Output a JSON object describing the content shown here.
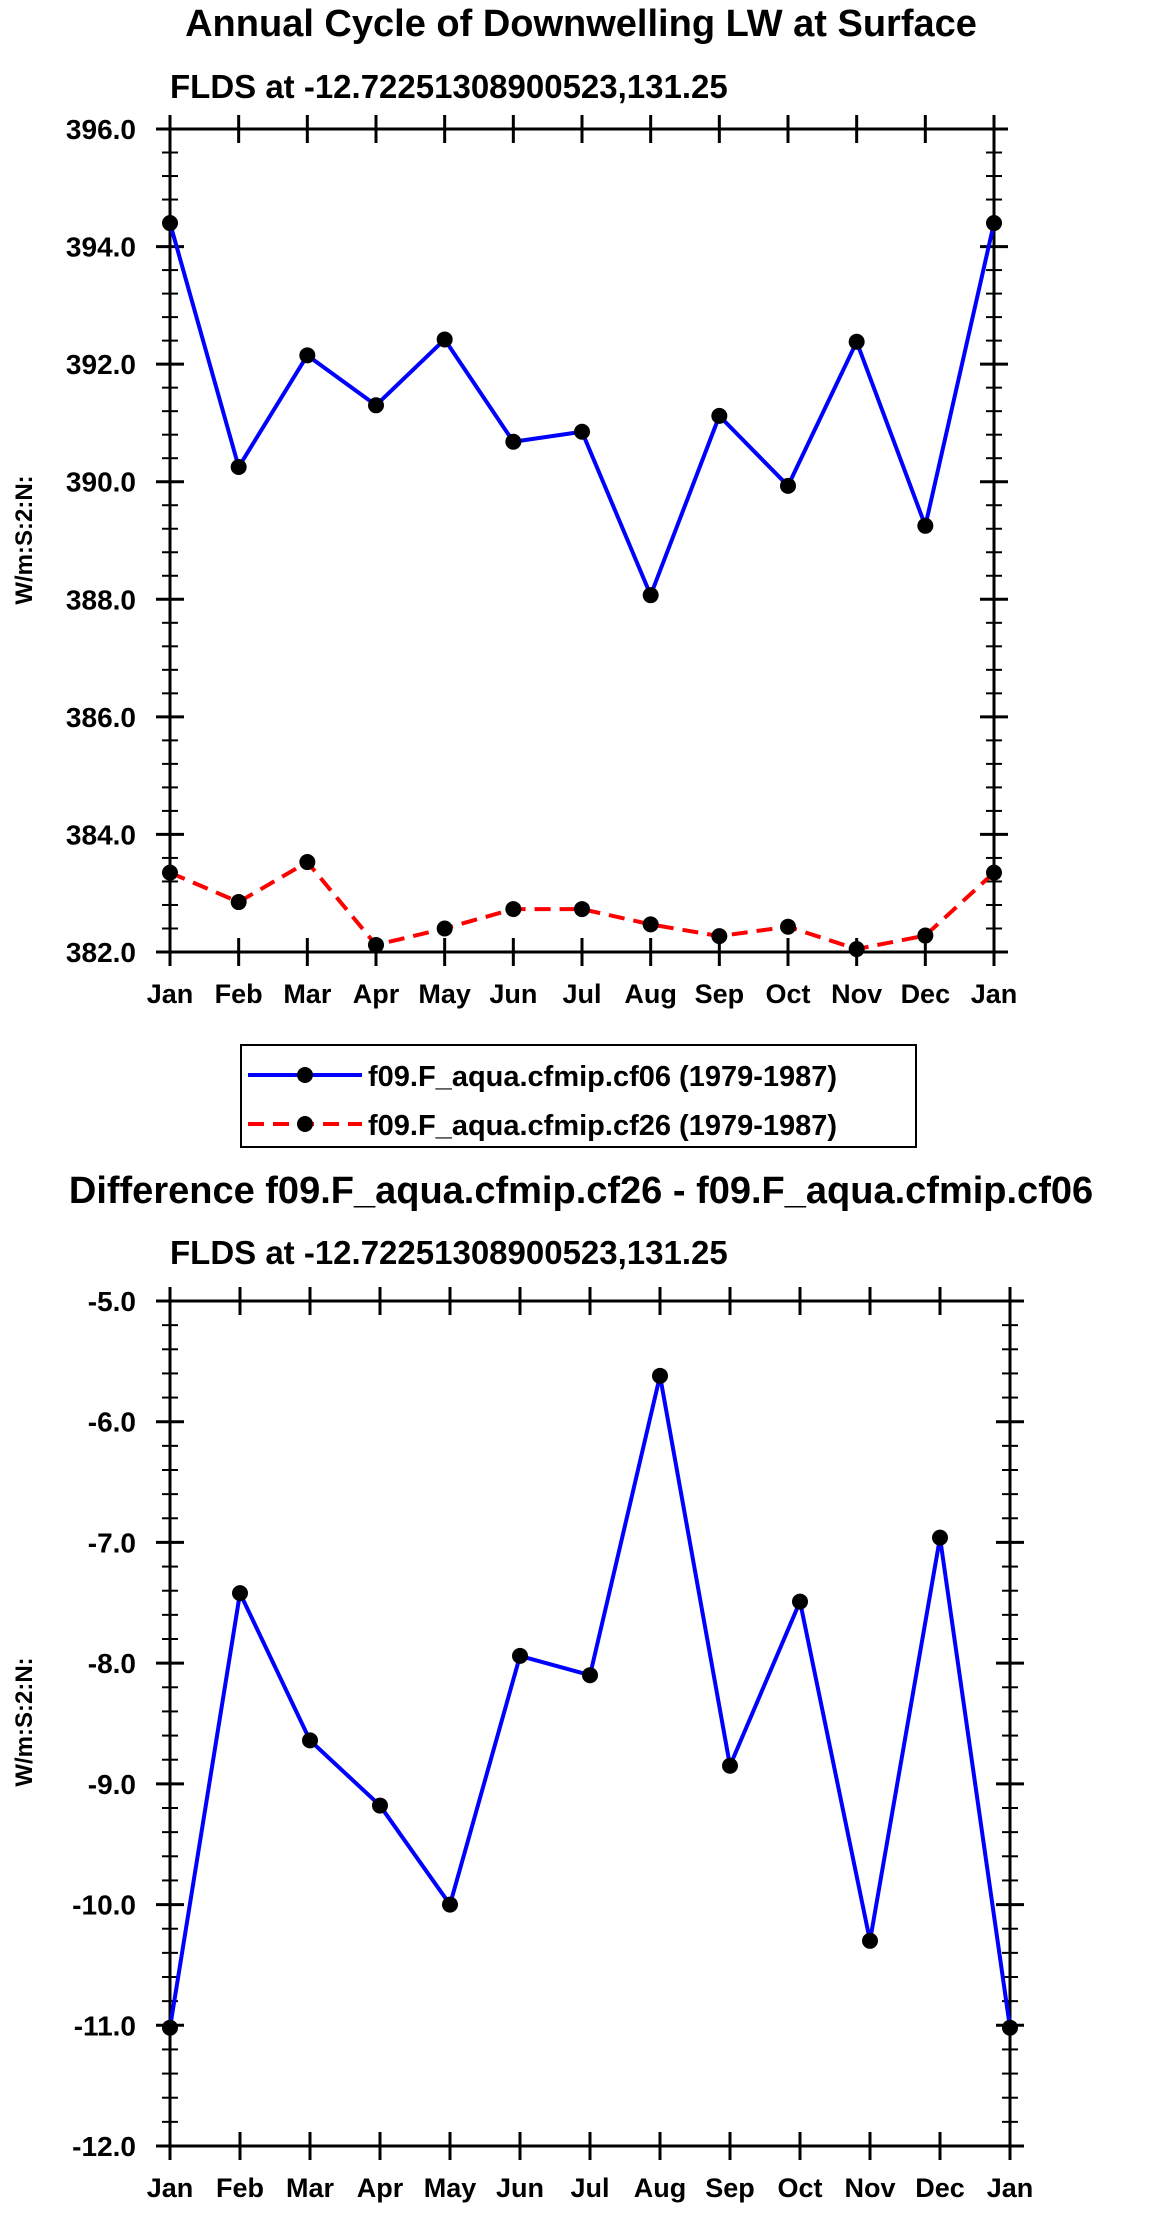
{
  "chart_data": [
    {
      "type": "line",
      "title": "Annual Cycle of Downwelling LW at Surface",
      "subtitle": "FLDS at -12.72251308900523,131.25",
      "xlabel": "",
      "ylabel": "W/m:S:2:N:",
      "categories": [
        "Jan",
        "Feb",
        "Mar",
        "Apr",
        "May",
        "Jun",
        "Jul",
        "Aug",
        "Sep",
        "Oct",
        "Nov",
        "Dec",
        "Jan"
      ],
      "ylim": [
        382.0,
        396.0
      ],
      "yticks": [
        "382.0",
        "384.0",
        "386.0",
        "388.0",
        "390.0",
        "392.0",
        "394.0",
        "396.0"
      ],
      "series": [
        {
          "name": "f09.F_aqua.cfmip.cf06 (1979-1987)",
          "color": "#0000ff",
          "dash": "solid",
          "values": [
            394.4,
            390.25,
            392.15,
            391.3,
            392.42,
            390.68,
            390.85,
            388.07,
            391.12,
            389.93,
            392.38,
            389.25,
            394.4
          ]
        },
        {
          "name": "f09.F_aqua.cfmip.cf26 (1979-1987)",
          "color": "#ff0000",
          "dash": "dashed",
          "values": [
            383.35,
            382.85,
            383.53,
            382.12,
            382.4,
            382.73,
            382.73,
            382.47,
            382.27,
            382.43,
            382.05,
            382.28,
            383.35
          ]
        }
      ],
      "legend": "below"
    },
    {
      "type": "line",
      "title": "Difference f09.F_aqua.cfmip.cf26 - f09.F_aqua.cfmip.cf06",
      "subtitle": "FLDS at -12.72251308900523,131.25",
      "xlabel": "",
      "ylabel": "W/m:S:2:N:",
      "categories": [
        "Jan",
        "Feb",
        "Mar",
        "Apr",
        "May",
        "Jun",
        "Jul",
        "Aug",
        "Sep",
        "Oct",
        "Nov",
        "Dec",
        "Jan"
      ],
      "ylim": [
        -12.0,
        -5.0
      ],
      "yticks": [
        "-12.0",
        "-11.0",
        "-10.0",
        "-9.0",
        "-8.0",
        "-7.0",
        "-6.0",
        "-5.0"
      ],
      "series": [
        {
          "name": "Difference",
          "color": "#0000ff",
          "dash": "solid",
          "values": [
            -11.02,
            -7.42,
            -8.64,
            -9.18,
            -10.0,
            -7.94,
            -8.1,
            -5.62,
            -8.85,
            -7.49,
            -10.3,
            -6.96,
            -11.02
          ]
        }
      ]
    }
  ]
}
